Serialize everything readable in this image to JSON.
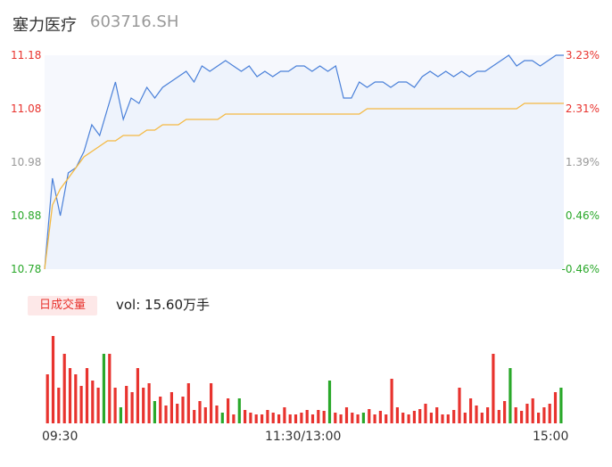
{
  "header": {
    "name": "塞力医疗",
    "code": "603716.SH"
  },
  "colors": {
    "up": "#e8332e",
    "down": "#2aa82a",
    "neutral": "#999999",
    "price_line": "#4a80d9",
    "avg_line": "#f4b942"
  },
  "price_axis": {
    "labels": [
      {
        "price": "11.18",
        "pct": "3.23%",
        "color": "#e8332e"
      },
      {
        "price": "11.08",
        "pct": "2.31%",
        "color": "#e8332e"
      },
      {
        "price": "10.98",
        "pct": "1.39%",
        "color": "#999999"
      },
      {
        "price": "10.88",
        "pct": "0.46%",
        "color": "#2aa82a"
      },
      {
        "price": "10.78",
        "pct": "-0.46%",
        "color": "#2aa82a"
      }
    ]
  },
  "volume_panel": {
    "badge": "日成交量",
    "vol_text": "vol: 15.60万手"
  },
  "time_axis": {
    "labels": [
      "09:30",
      "11:30/13:00",
      "15:00"
    ]
  },
  "chart_data": {
    "type": "line",
    "x_range": [
      "09:30",
      "15:00"
    ],
    "ylim": [
      10.78,
      11.18
    ],
    "series": [
      {
        "values": [
          10.78,
          10.95,
          10.88,
          10.96,
          10.97,
          11.0,
          11.05,
          11.03,
          11.08,
          11.13,
          11.06,
          11.1,
          11.09,
          11.12,
          11.1,
          11.12,
          11.13,
          11.14,
          11.15,
          11.13,
          11.16,
          11.15,
          11.16,
          11.17,
          11.16,
          11.15,
          11.16,
          11.14,
          11.15,
          11.14,
          11.15,
          11.15,
          11.16,
          11.16,
          11.15,
          11.16,
          11.15,
          11.16,
          11.1,
          11.1,
          11.13,
          11.12,
          11.13,
          11.13,
          11.12,
          11.13,
          11.13,
          11.12,
          11.14,
          11.15,
          11.14,
          11.15,
          11.14,
          11.15,
          11.14,
          11.15,
          11.15,
          11.16,
          11.17,
          11.18,
          11.16,
          11.17,
          11.17,
          11.16,
          11.17,
          11.18,
          11.18
        ]
      },
      {
        "values": [
          10.78,
          10.9,
          10.93,
          10.95,
          10.97,
          10.99,
          11.0,
          11.01,
          11.02,
          11.02,
          11.03,
          11.03,
          11.03,
          11.04,
          11.04,
          11.05,
          11.05,
          11.05,
          11.06,
          11.06,
          11.06,
          11.06,
          11.06,
          11.07,
          11.07,
          11.07,
          11.07,
          11.07,
          11.07,
          11.07,
          11.07,
          11.07,
          11.07,
          11.07,
          11.07,
          11.07,
          11.07,
          11.07,
          11.07,
          11.07,
          11.07,
          11.08,
          11.08,
          11.08,
          11.08,
          11.08,
          11.08,
          11.08,
          11.08,
          11.08,
          11.08,
          11.08,
          11.08,
          11.08,
          11.08,
          11.08,
          11.08,
          11.08,
          11.08,
          11.08,
          11.08,
          11.09,
          11.09,
          11.09,
          11.09,
          11.09,
          11.09
        ]
      }
    ],
    "volume": [
      {
        "v": 55,
        "c": "up"
      },
      {
        "v": 98,
        "c": "up"
      },
      {
        "v": 40,
        "c": "up"
      },
      {
        "v": 78,
        "c": "up"
      },
      {
        "v": 62,
        "c": "up"
      },
      {
        "v": 55,
        "c": "up"
      },
      {
        "v": 42,
        "c": "up"
      },
      {
        "v": 62,
        "c": "up"
      },
      {
        "v": 48,
        "c": "up"
      },
      {
        "v": 40,
        "c": "up"
      },
      {
        "v": 78,
        "c": "down"
      },
      {
        "v": 78,
        "c": "up"
      },
      {
        "v": 40,
        "c": "up"
      },
      {
        "v": 18,
        "c": "down"
      },
      {
        "v": 42,
        "c": "up"
      },
      {
        "v": 35,
        "c": "up"
      },
      {
        "v": 62,
        "c": "up"
      },
      {
        "v": 40,
        "c": "up"
      },
      {
        "v": 45,
        "c": "up"
      },
      {
        "v": 25,
        "c": "down"
      },
      {
        "v": 30,
        "c": "up"
      },
      {
        "v": 20,
        "c": "up"
      },
      {
        "v": 35,
        "c": "up"
      },
      {
        "v": 22,
        "c": "up"
      },
      {
        "v": 30,
        "c": "up"
      },
      {
        "v": 45,
        "c": "up"
      },
      {
        "v": 15,
        "c": "up"
      },
      {
        "v": 25,
        "c": "up"
      },
      {
        "v": 18,
        "c": "up"
      },
      {
        "v": 45,
        "c": "up"
      },
      {
        "v": 20,
        "c": "up"
      },
      {
        "v": 12,
        "c": "down"
      },
      {
        "v": 28,
        "c": "up"
      },
      {
        "v": 10,
        "c": "up"
      },
      {
        "v": 28,
        "c": "down"
      },
      {
        "v": 15,
        "c": "up"
      },
      {
        "v": 12,
        "c": "up"
      },
      {
        "v": 10,
        "c": "up"
      },
      {
        "v": 10,
        "c": "up"
      },
      {
        "v": 15,
        "c": "up"
      },
      {
        "v": 12,
        "c": "up"
      },
      {
        "v": 10,
        "c": "up"
      },
      {
        "v": 18,
        "c": "up"
      },
      {
        "v": 10,
        "c": "up"
      },
      {
        "v": 10,
        "c": "up"
      },
      {
        "v": 12,
        "c": "up"
      },
      {
        "v": 15,
        "c": "up"
      },
      {
        "v": 10,
        "c": "up"
      },
      {
        "v": 15,
        "c": "up"
      },
      {
        "v": 14,
        "c": "up"
      },
      {
        "v": 48,
        "c": "down"
      },
      {
        "v": 12,
        "c": "up"
      },
      {
        "v": 10,
        "c": "up"
      },
      {
        "v": 18,
        "c": "up"
      },
      {
        "v": 12,
        "c": "up"
      },
      {
        "v": 10,
        "c": "up"
      },
      {
        "v": 12,
        "c": "down"
      },
      {
        "v": 16,
        "c": "up"
      },
      {
        "v": 10,
        "c": "up"
      },
      {
        "v": 14,
        "c": "up"
      },
      {
        "v": 10,
        "c": "up"
      },
      {
        "v": 50,
        "c": "up"
      },
      {
        "v": 18,
        "c": "up"
      },
      {
        "v": 12,
        "c": "up"
      },
      {
        "v": 10,
        "c": "up"
      },
      {
        "v": 14,
        "c": "up"
      },
      {
        "v": 16,
        "c": "up"
      },
      {
        "v": 22,
        "c": "up"
      },
      {
        "v": 12,
        "c": "up"
      },
      {
        "v": 18,
        "c": "up"
      },
      {
        "v": 10,
        "c": "up"
      },
      {
        "v": 10,
        "c": "up"
      },
      {
        "v": 15,
        "c": "up"
      },
      {
        "v": 40,
        "c": "up"
      },
      {
        "v": 12,
        "c": "up"
      },
      {
        "v": 28,
        "c": "up"
      },
      {
        "v": 20,
        "c": "up"
      },
      {
        "v": 12,
        "c": "up"
      },
      {
        "v": 18,
        "c": "up"
      },
      {
        "v": 78,
        "c": "up"
      },
      {
        "v": 15,
        "c": "up"
      },
      {
        "v": 25,
        "c": "up"
      },
      {
        "v": 62,
        "c": "down"
      },
      {
        "v": 18,
        "c": "up"
      },
      {
        "v": 14,
        "c": "up"
      },
      {
        "v": 22,
        "c": "up"
      },
      {
        "v": 28,
        "c": "up"
      },
      {
        "v": 12,
        "c": "up"
      },
      {
        "v": 18,
        "c": "up"
      },
      {
        "v": 22,
        "c": "up"
      },
      {
        "v": 35,
        "c": "up"
      },
      {
        "v": 40,
        "c": "down"
      }
    ]
  }
}
